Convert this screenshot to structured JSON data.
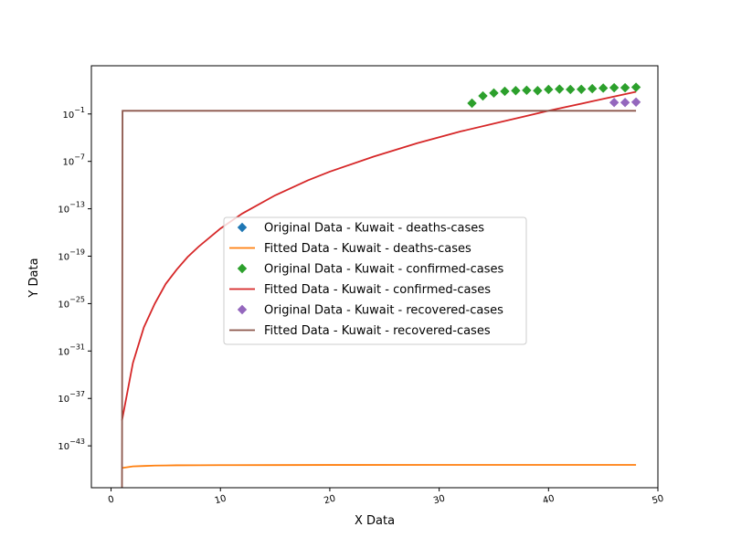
{
  "chart_data": {
    "type": "scatter",
    "xlabel": "X Data",
    "ylabel": "Y Data",
    "xlim": [
      -1.8,
      50.0
    ],
    "ylim_log10": [
      -48.3,
      5.1
    ],
    "y_scale": "log",
    "x_ticks": [
      0,
      10,
      20,
      30,
      40,
      50
    ],
    "x_tick_labels": [
      "0",
      "10",
      "20",
      "30",
      "40",
      "50"
    ],
    "y_tick_exponents": [
      -43,
      -37,
      -31,
      -25,
      -19,
      -13,
      -7,
      -1
    ],
    "y_tick_base": "10",
    "y_tick_labels": [
      "−43",
      "−37",
      "−31",
      "−25",
      "−19",
      "−13",
      "−7",
      "−1"
    ],
    "legend_position": "center",
    "grid": false,
    "series": [
      {
        "name": "Original Data - Kuwait - deaths-cases",
        "kind": "markers",
        "marker": "diamond",
        "color": "#1f77b4",
        "x": [],
        "log10_y": []
      },
      {
        "name": "Fitted Data - Kuwait - deaths-cases",
        "kind": "line",
        "color": "#ff7f0e",
        "x": [
          1,
          2,
          3,
          4,
          5,
          6,
          8,
          10,
          15,
          20,
          30,
          40,
          48
        ],
        "log10_y": [
          -45.8,
          -45.6,
          -45.55,
          -45.5,
          -45.48,
          -45.46,
          -45.45,
          -45.44,
          -45.43,
          -45.42,
          -45.41,
          -45.41,
          -45.41
        ]
      },
      {
        "name": "Original Data - Kuwait - confirmed-cases",
        "kind": "markers",
        "marker": "diamond",
        "color": "#2ca02c",
        "x": [
          33,
          34,
          35,
          36,
          37,
          38,
          39,
          40,
          41,
          42,
          43,
          44,
          45,
          46,
          47,
          48
        ],
        "log10_y": [
          0.36,
          1.28,
          1.65,
          1.87,
          1.95,
          2.0,
          1.95,
          2.1,
          2.15,
          2.1,
          2.12,
          2.2,
          2.27,
          2.32,
          2.32,
          2.38
        ]
      },
      {
        "name": "Fitted Data - Kuwait - confirmed-cases",
        "kind": "line",
        "color": "#d62728",
        "x": [
          1,
          2,
          3,
          4,
          5,
          6,
          7,
          8,
          10,
          12,
          15,
          18,
          20,
          24,
          28,
          32,
          36,
          40,
          44,
          48
        ],
        "log10_y": [
          -39.8,
          -32.5,
          -28.0,
          -25.0,
          -22.5,
          -20.7,
          -19.1,
          -17.8,
          -15.5,
          -13.6,
          -11.3,
          -9.4,
          -8.3,
          -6.4,
          -4.7,
          -3.2,
          -1.9,
          -0.6,
          0.6,
          1.8
        ]
      },
      {
        "name": "Original Data - Kuwait - recovered-cases",
        "kind": "markers",
        "marker": "diamond",
        "color": "#9467bd",
        "x": [
          46,
          47,
          48
        ],
        "log10_y": [
          0.45,
          0.45,
          0.5
        ]
      },
      {
        "name": "Fitted Data - Kuwait - recovered-cases",
        "kind": "line",
        "color": "#8c564b",
        "x": [
          1,
          1.05,
          2,
          10,
          20,
          30,
          40,
          48
        ],
        "log10_y": [
          -48.3,
          -0.6,
          -0.6,
          -0.6,
          -0.6,
          -0.6,
          -0.6,
          -0.6
        ]
      }
    ]
  }
}
